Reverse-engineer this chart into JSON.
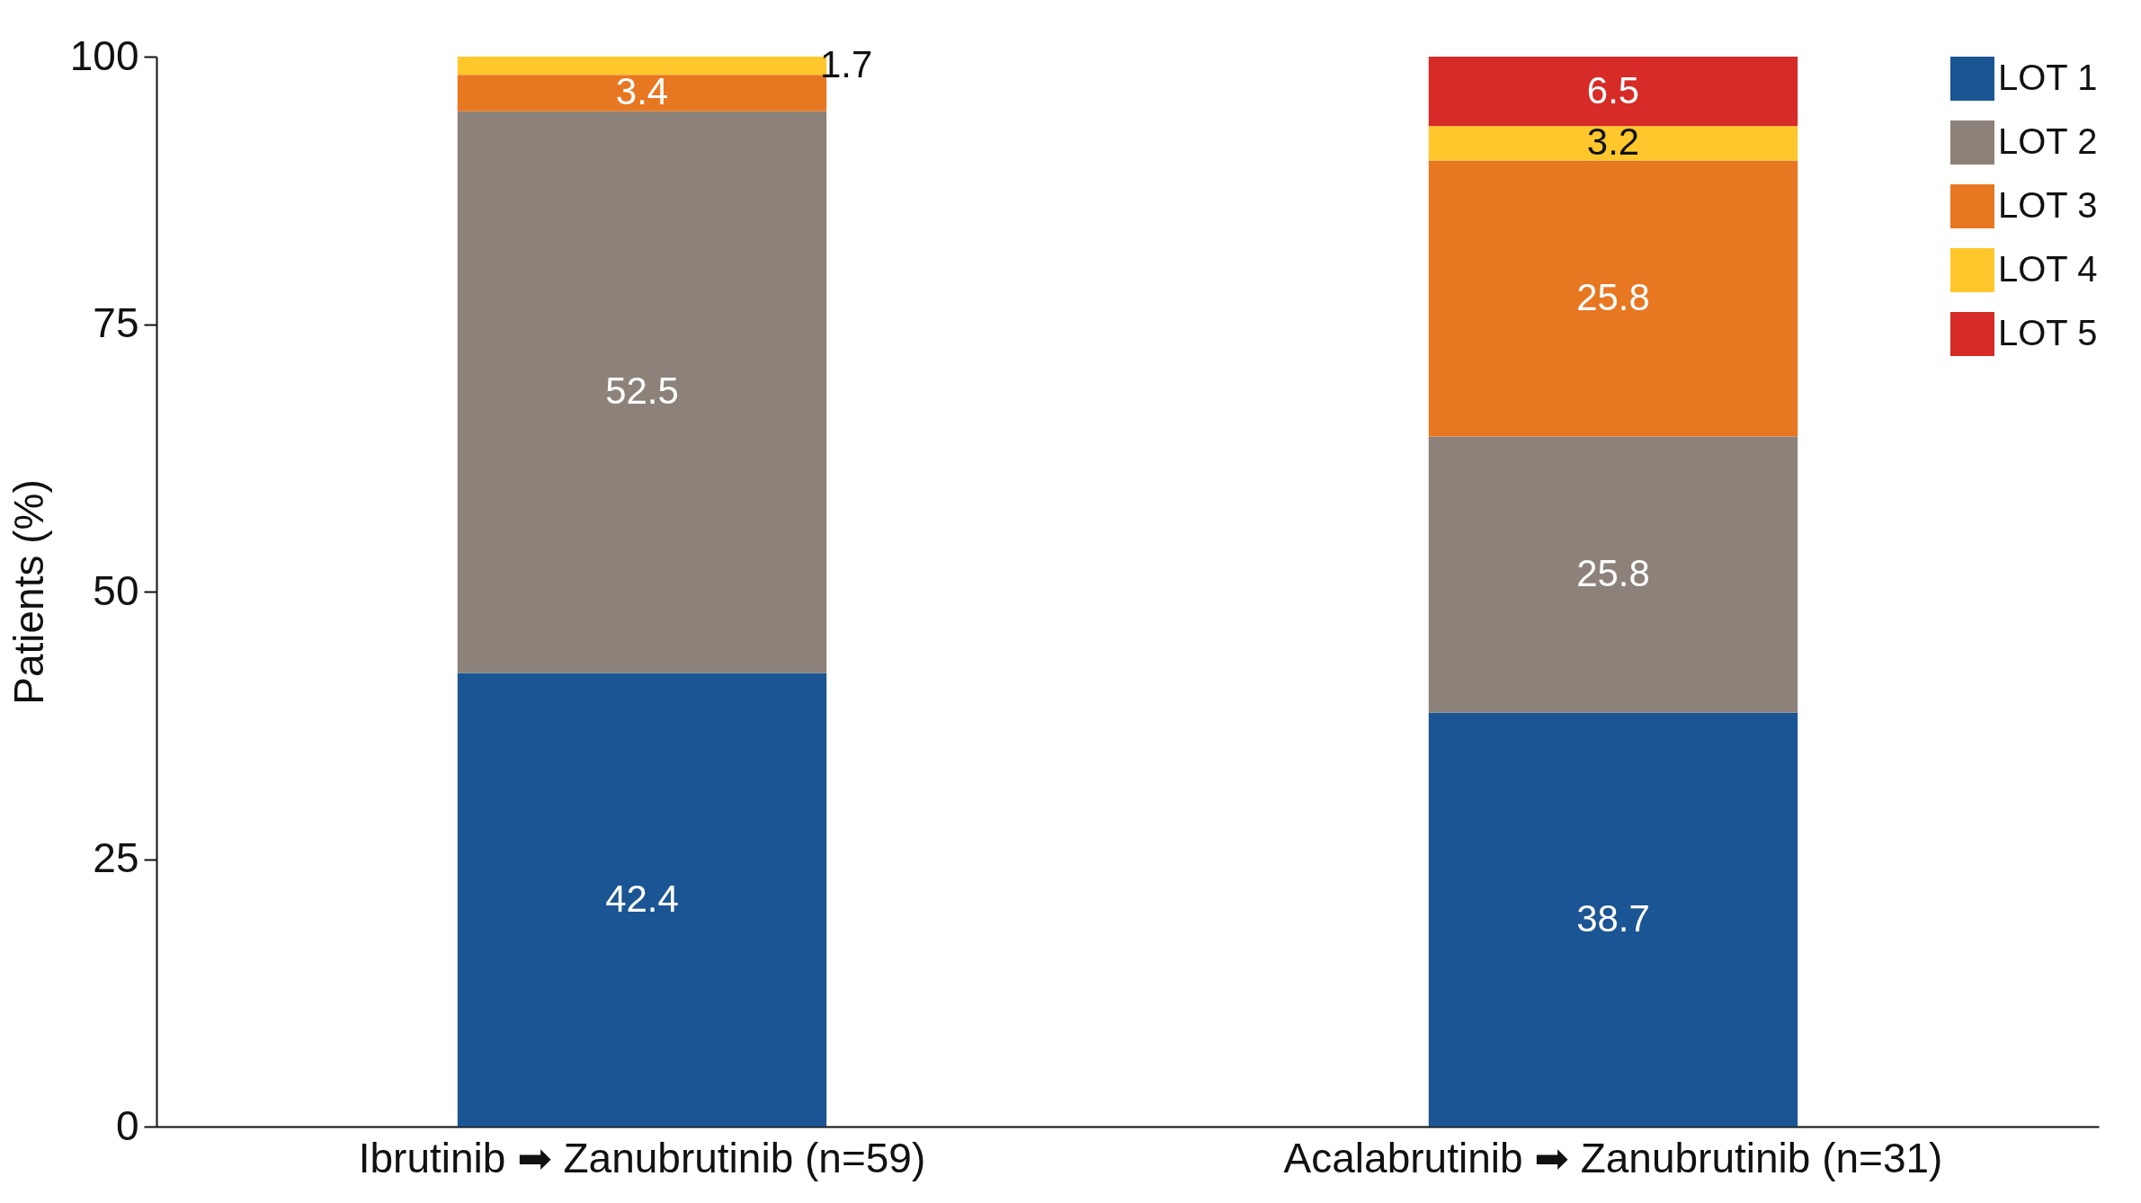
{
  "chart_data": {
    "type": "bar",
    "stacked": true,
    "ylabel": "Patients (%)",
    "categories": [
      "Ibrutinib ➡ Zanubrutinib (n=59)",
      "Acalabrutinib ➡ Zanubrutinib (n=31)"
    ],
    "series": [
      {
        "name": "LOT 1",
        "color": "#1b5593",
        "values": [
          42.4,
          38.7
        ]
      },
      {
        "name": "LOT 2",
        "color": "#8c8279",
        "values": [
          52.5,
          25.8
        ]
      },
      {
        "name": "LOT 3",
        "color": "#e87722",
        "values": [
          3.4,
          25.8
        ]
      },
      {
        "name": "LOT 4",
        "color": "#ffc72c",
        "values": [
          1.7,
          3.2
        ]
      },
      {
        "name": "LOT 5",
        "color": "#d62b27",
        "values": [
          null,
          6.5
        ]
      }
    ],
    "ylim": [
      0,
      100
    ],
    "yticks": [
      0,
      25,
      50,
      75,
      100
    ],
    "grid": false,
    "legend": "top right",
    "data_labels": true
  }
}
